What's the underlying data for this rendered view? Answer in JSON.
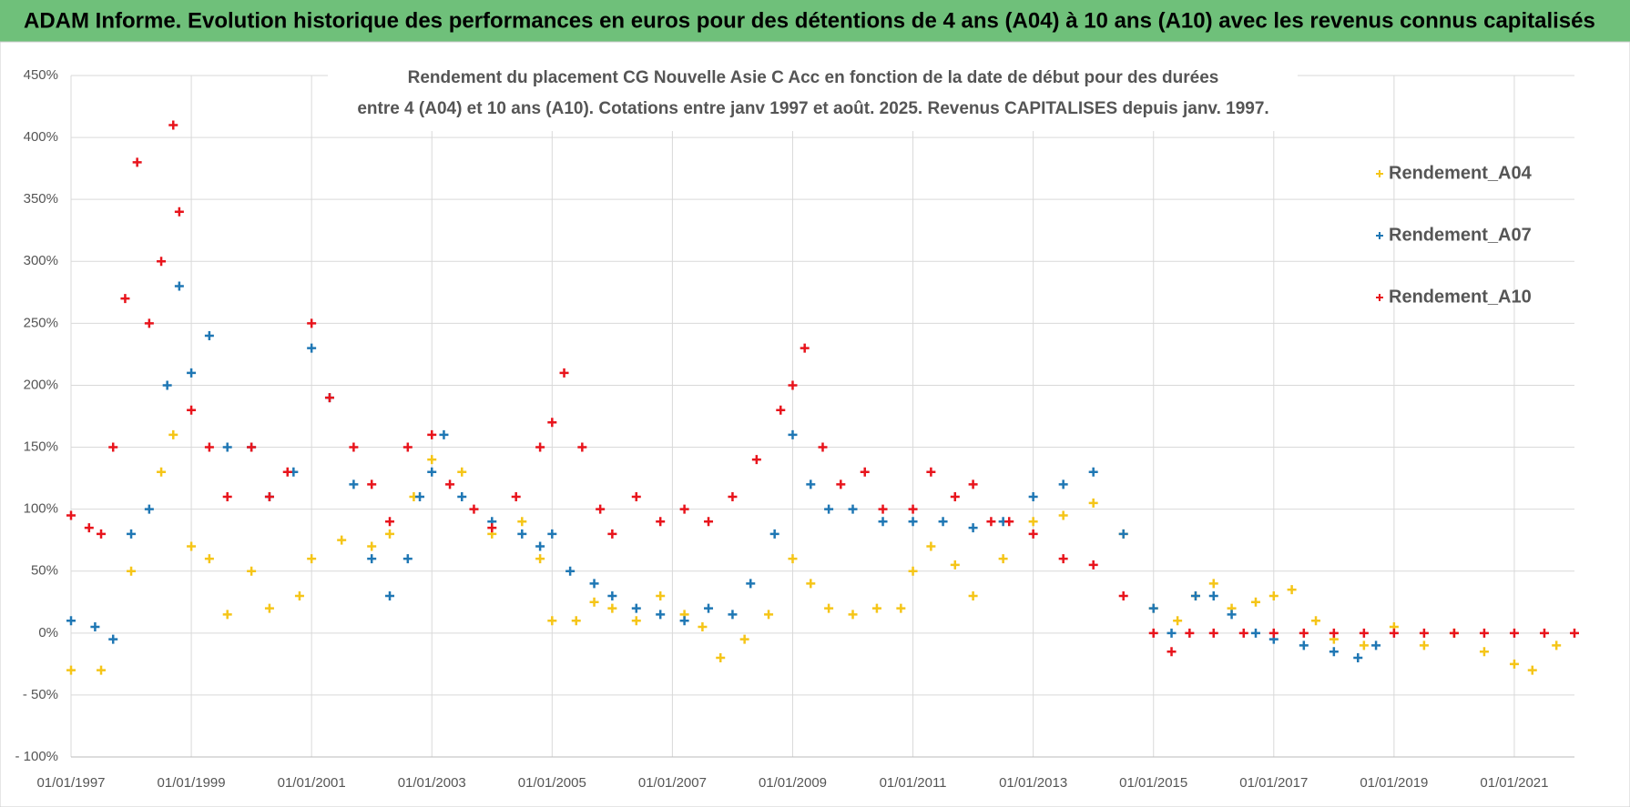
{
  "header": {
    "title": "ADAM Informe. Evolution historique des performances en euros pour des détentions de 4 ans (A04) à 10 ans (A10) avec les revenus connus capitalisés"
  },
  "chart_data": {
    "type": "scatter",
    "title": "Rendement du placement CG Nouvelle Asie C Acc en fonction de la date de début pour des durées",
    "subtitle": "entre 4 (A04) et 10 ans (A10).  Cotations entre janv 1997 et août. 2025. Revenus CAPITALISES depuis janv. 1997.",
    "xlim": [
      1997,
      2022
    ],
    "xticks": [
      {
        "value": 1997,
        "label": "01/01/1997"
      },
      {
        "value": 1999,
        "label": "01/01/1999"
      },
      {
        "value": 2001,
        "label": "01/01/2001"
      },
      {
        "value": 2003,
        "label": "01/01/2003"
      },
      {
        "value": 2005,
        "label": "01/01/2005"
      },
      {
        "value": 2007,
        "label": "01/01/2007"
      },
      {
        "value": 2009,
        "label": "01/01/2009"
      },
      {
        "value": 2011,
        "label": "01/01/2011"
      },
      {
        "value": 2013,
        "label": "01/01/2013"
      },
      {
        "value": 2015,
        "label": "01/01/2015"
      },
      {
        "value": 2017,
        "label": "01/01/2017"
      },
      {
        "value": 2019,
        "label": "01/01/2019"
      },
      {
        "value": 2021,
        "label": "01/01/2021"
      }
    ],
    "ylim": [
      -100,
      450
    ],
    "yticks": [
      {
        "value": -100,
        "label": "- 100%"
      },
      {
        "value": -50,
        "label": "- 50%"
      },
      {
        "value": 0,
        "label": "0%"
      },
      {
        "value": 50,
        "label": "50%"
      },
      {
        "value": 100,
        "label": "100%"
      },
      {
        "value": 150,
        "label": "150%"
      },
      {
        "value": 200,
        "label": "200%"
      },
      {
        "value": 250,
        "label": "250%"
      },
      {
        "value": 300,
        "label": "300%"
      },
      {
        "value": 350,
        "label": "350%"
      },
      {
        "value": 400,
        "label": "400%"
      },
      {
        "value": 450,
        "label": "450%"
      }
    ],
    "grid": true,
    "legend": "right",
    "series": [
      {
        "name": "Rendement_A04",
        "color": "#f5c518",
        "x": [
          1997.0,
          1997.5,
          1998.0,
          1998.5,
          1998.7,
          1999.0,
          1999.3,
          1999.6,
          2000.0,
          2000.3,
          2000.8,
          2001.0,
          2001.5,
          2002.0,
          2002.3,
          2002.7,
          2003.0,
          2003.5,
          2004.0,
          2004.5,
          2004.8,
          2005.0,
          2005.4,
          2005.7,
          2006.0,
          2006.4,
          2006.8,
          2007.2,
          2007.5,
          2007.8,
          2008.2,
          2008.6,
          2009.0,
          2009.3,
          2009.6,
          2010.0,
          2010.4,
          2010.8,
          2011.0,
          2011.3,
          2011.7,
          2012.0,
          2012.5,
          2013.0,
          2013.5,
          2014.0,
          2014.5,
          2015.0,
          2015.4,
          2015.7,
          2016.0,
          2016.3,
          2016.7,
          2017.0,
          2017.3,
          2017.7,
          2018.0,
          2018.5,
          2019.0,
          2019.5,
          2020.0,
          2020.5,
          2021.0,
          2021.3,
          2021.7
        ],
        "values": [
          -30,
          -30,
          50,
          130,
          160,
          70,
          60,
          15,
          50,
          20,
          30,
          60,
          75,
          70,
          80,
          110,
          140,
          130,
          80,
          90,
          60,
          10,
          10,
          25,
          20,
          10,
          30,
          15,
          5,
          -20,
          -5,
          15,
          60,
          40,
          20,
          15,
          20,
          20,
          50,
          70,
          55,
          30,
          60,
          90,
          95,
          105,
          80,
          20,
          10,
          30,
          40,
          20,
          25,
          30,
          35,
          10,
          -5,
          -10,
          5,
          -10,
          0,
          -15,
          -25,
          -30,
          -10
        ]
      },
      {
        "name": "Rendement_A07",
        "color": "#1f77b4",
        "x": [
          1997.0,
          1997.4,
          1997.7,
          1998.0,
          1998.3,
          1998.6,
          1998.8,
          1999.0,
          1999.3,
          1999.6,
          2000.0,
          2000.3,
          2000.7,
          2001.0,
          2001.3,
          2001.7,
          2002.0,
          2002.3,
          2002.6,
          2002.8,
          2003.0,
          2003.2,
          2003.5,
          2004.0,
          2004.5,
          2004.8,
          2005.0,
          2005.3,
          2005.7,
          2006.0,
          2006.4,
          2006.8,
          2007.2,
          2007.6,
          2008.0,
          2008.3,
          2008.7,
          2009.0,
          2009.3,
          2009.6,
          2010.0,
          2010.5,
          2011.0,
          2011.5,
          2012.0,
          2012.5,
          2013.0,
          2013.5,
          2014.0,
          2014.5,
          2015.0,
          2015.3,
          2015.7,
          2016.0,
          2016.3,
          2016.7,
          2017.0,
          2017.5,
          2018.0,
          2018.4,
          2018.7
        ],
        "values": [
          10,
          5,
          -5,
          80,
          100,
          200,
          280,
          210,
          240,
          150,
          150,
          110,
          130,
          230,
          190,
          120,
          60,
          30,
          60,
          110,
          130,
          160,
          110,
          90,
          80,
          70,
          80,
          50,
          40,
          30,
          20,
          15,
          10,
          20,
          15,
          40,
          80,
          160,
          120,
          100,
          100,
          90,
          90,
          90,
          85,
          90,
          110,
          120,
          130,
          80,
          20,
          0,
          30,
          30,
          15,
          0,
          -5,
          -10,
          -15,
          -20,
          -10
        ]
      },
      {
        "name": "Rendement_A10",
        "color": "#e8141c",
        "x": [
          1997.0,
          1997.3,
          1997.5,
          1997.7,
          1997.9,
          1998.1,
          1998.3,
          1998.5,
          1998.7,
          1998.8,
          1999.0,
          1999.3,
          1999.6,
          2000.0,
          2000.3,
          2000.6,
          2001.0,
          2001.3,
          2001.7,
          2002.0,
          2002.3,
          2002.6,
          2003.0,
          2003.3,
          2003.7,
          2004.0,
          2004.4,
          2004.8,
          2005.0,
          2005.2,
          2005.5,
          2005.8,
          2006.0,
          2006.4,
          2006.8,
          2007.2,
          2007.6,
          2008.0,
          2008.4,
          2008.8,
          2009.0,
          2009.2,
          2009.5,
          2009.8,
          2010.2,
          2010.5,
          2011.0,
          2011.3,
          2011.7,
          2012.0,
          2012.3,
          2012.6,
          2013.0,
          2013.5,
          2014.0,
          2014.5,
          2015.0,
          2015.3,
          2015.6,
          2016.0,
          2016.5,
          2017.0,
          2017.5,
          2018.0,
          2018.5,
          2019.0,
          2019.5,
          2020.0,
          2020.5,
          2021.0,
          2021.5,
          2022.0
        ],
        "values": [
          95,
          85,
          80,
          150,
          270,
          380,
          250,
          300,
          410,
          340,
          180,
          150,
          110,
          150,
          110,
          130,
          250,
          190,
          150,
          120,
          90,
          150,
          160,
          120,
          100,
          85,
          110,
          150,
          170,
          210,
          150,
          100,
          80,
          110,
          90,
          100,
          90,
          110,
          140,
          180,
          200,
          230,
          150,
          120,
          130,
          100,
          100,
          130,
          110,
          120,
          90,
          90,
          80,
          60,
          55,
          30,
          0,
          -15,
          0,
          0,
          0,
          0,
          0,
          0,
          0,
          0,
          0,
          0,
          0,
          0,
          0,
          0
        ]
      }
    ]
  }
}
